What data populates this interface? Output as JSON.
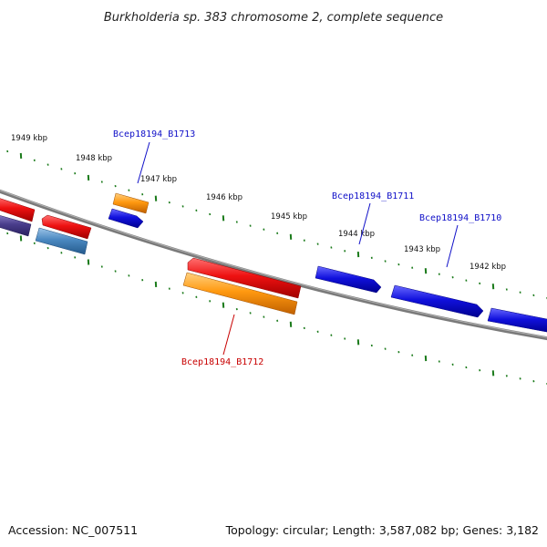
{
  "title": "Burkholderia sp. 383 chromosome 2, complete sequence",
  "footer": {
    "accession": "Accession: NC_007511",
    "topology": "Topology: circular; Length: 3,587,082 bp; Genes: 3,182"
  },
  "colors": {
    "backbone": "#808080",
    "tick": "#1a7a1a",
    "label_blue": "#1010c8",
    "label_red": "#c80000",
    "gene_red": "#ee1111",
    "gene_blue": "#1111dd",
    "gene_orange": "#ff9910",
    "gene_steel": "#4a88c0",
    "gene_purple": "#4a3e8c"
  },
  "kbp_ticks": [
    "1949 kbp",
    "1948 kbp",
    "1947 kbp",
    "1946 kbp",
    "1945 kbp",
    "1944 kbp",
    "1943 kbp",
    "1942 kbp"
  ],
  "gene_labels": [
    "Bcep18194_B1713",
    "Bcep18194_B1711",
    "Bcep18194_B1710",
    "Bcep18194_B1712"
  ]
}
